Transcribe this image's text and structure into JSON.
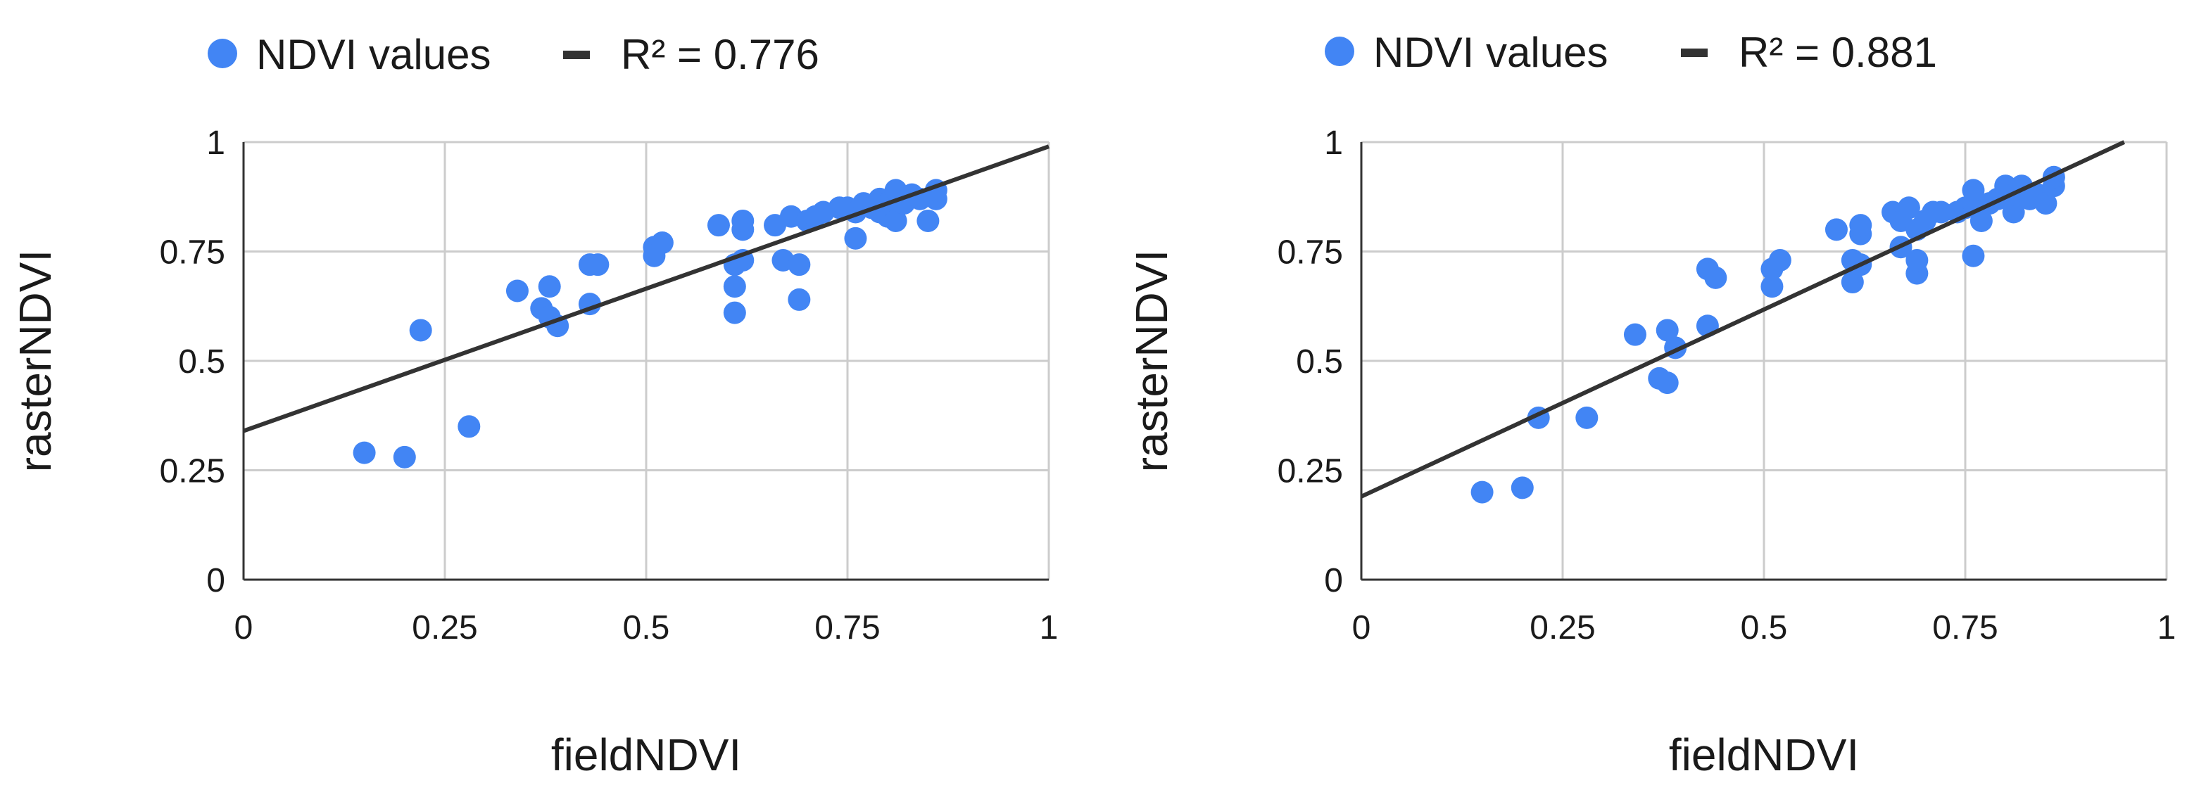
{
  "colors": {
    "points": "#4285f4",
    "trendline": "#333333",
    "grid": "#cccccc",
    "axis": "#333333"
  },
  "chart_data": [
    {
      "type": "scatter",
      "legend": {
        "series_label": "NDVI values",
        "trend_label": "R² = 0.776",
        "placement": "top-left"
      },
      "xlabel": "fieldNDVI",
      "ylabel": "rasterNDVI",
      "xlim": [
        0,
        1
      ],
      "ylim": [
        0,
        1
      ],
      "x_ticks": [
        0,
        0.25,
        0.5,
        0.75,
        1
      ],
      "y_ticks": [
        0,
        0.25,
        0.5,
        0.75,
        1
      ],
      "x_tick_labels": [
        "0",
        "0.25",
        "0.5",
        "0.75",
        "1"
      ],
      "y_tick_labels": [
        "0",
        "0.25",
        "0.5",
        "0.75",
        "1"
      ],
      "grid": true,
      "trendline": {
        "intercept": 0.34,
        "slope": 0.65
      },
      "points": [
        [
          0.15,
          0.29
        ],
        [
          0.2,
          0.28
        ],
        [
          0.22,
          0.57
        ],
        [
          0.28,
          0.35
        ],
        [
          0.34,
          0.66
        ],
        [
          0.37,
          0.62
        ],
        [
          0.38,
          0.67
        ],
        [
          0.38,
          0.6
        ],
        [
          0.39,
          0.58
        ],
        [
          0.43,
          0.63
        ],
        [
          0.43,
          0.72
        ],
        [
          0.44,
          0.72
        ],
        [
          0.51,
          0.74
        ],
        [
          0.51,
          0.76
        ],
        [
          0.52,
          0.77
        ],
        [
          0.59,
          0.81
        ],
        [
          0.61,
          0.61
        ],
        [
          0.61,
          0.67
        ],
        [
          0.61,
          0.72
        ],
        [
          0.62,
          0.73
        ],
        [
          0.62,
          0.8
        ],
        [
          0.62,
          0.82
        ],
        [
          0.66,
          0.81
        ],
        [
          0.67,
          0.73
        ],
        [
          0.68,
          0.83
        ],
        [
          0.69,
          0.64
        ],
        [
          0.69,
          0.72
        ],
        [
          0.7,
          0.82
        ],
        [
          0.71,
          0.83
        ],
        [
          0.72,
          0.84
        ],
        [
          0.74,
          0.85
        ],
        [
          0.75,
          0.85
        ],
        [
          0.76,
          0.78
        ],
        [
          0.76,
          0.84
        ],
        [
          0.77,
          0.86
        ],
        [
          0.78,
          0.85
        ],
        [
          0.79,
          0.84
        ],
        [
          0.79,
          0.87
        ],
        [
          0.8,
          0.83
        ],
        [
          0.8,
          0.86
        ],
        [
          0.81,
          0.82
        ],
        [
          0.81,
          0.89
        ],
        [
          0.82,
          0.86
        ],
        [
          0.83,
          0.88
        ],
        [
          0.84,
          0.87
        ],
        [
          0.85,
          0.82
        ],
        [
          0.86,
          0.87
        ],
        [
          0.86,
          0.89
        ]
      ]
    },
    {
      "type": "scatter",
      "legend": {
        "series_label": "NDVI values",
        "trend_label": "R² = 0.881",
        "placement": "top-left"
      },
      "xlabel": "fieldNDVI",
      "ylabel": "rasterNDVI",
      "xlim": [
        0,
        1
      ],
      "ylim": [
        0,
        1
      ],
      "x_ticks": [
        0,
        0.25,
        0.5,
        0.75,
        1
      ],
      "y_ticks": [
        0,
        0.25,
        0.5,
        0.75,
        1
      ],
      "x_tick_labels": [
        "0",
        "0.25",
        "0.5",
        "0.75",
        "1"
      ],
      "y_tick_labels": [
        "0",
        "0.25",
        "0.5",
        "0.75",
        "1"
      ],
      "grid": true,
      "trendline": {
        "intercept": 0.19,
        "slope": 0.855
      },
      "points": [
        [
          0.15,
          0.2
        ],
        [
          0.2,
          0.21
        ],
        [
          0.22,
          0.37
        ],
        [
          0.28,
          0.37
        ],
        [
          0.34,
          0.56
        ],
        [
          0.37,
          0.46
        ],
        [
          0.38,
          0.45
        ],
        [
          0.38,
          0.57
        ],
        [
          0.39,
          0.53
        ],
        [
          0.43,
          0.58
        ],
        [
          0.43,
          0.71
        ],
        [
          0.44,
          0.69
        ],
        [
          0.51,
          0.67
        ],
        [
          0.51,
          0.71
        ],
        [
          0.52,
          0.73
        ],
        [
          0.59,
          0.8
        ],
        [
          0.61,
          0.68
        ],
        [
          0.61,
          0.73
        ],
        [
          0.62,
          0.72
        ],
        [
          0.62,
          0.79
        ],
        [
          0.62,
          0.81
        ],
        [
          0.66,
          0.84
        ],
        [
          0.67,
          0.76
        ],
        [
          0.67,
          0.82
        ],
        [
          0.68,
          0.85
        ],
        [
          0.69,
          0.7
        ],
        [
          0.69,
          0.73
        ],
        [
          0.69,
          0.8
        ],
        [
          0.7,
          0.82
        ],
        [
          0.71,
          0.84
        ],
        [
          0.72,
          0.84
        ],
        [
          0.74,
          0.84
        ],
        [
          0.75,
          0.85
        ],
        [
          0.76,
          0.74
        ],
        [
          0.76,
          0.86
        ],
        [
          0.76,
          0.89
        ],
        [
          0.77,
          0.82
        ],
        [
          0.78,
          0.86
        ],
        [
          0.79,
          0.87
        ],
        [
          0.8,
          0.9
        ],
        [
          0.81,
          0.84
        ],
        [
          0.81,
          0.88
        ],
        [
          0.82,
          0.9
        ],
        [
          0.83,
          0.87
        ],
        [
          0.84,
          0.88
        ],
        [
          0.85,
          0.86
        ],
        [
          0.86,
          0.9
        ],
        [
          0.86,
          0.92
        ]
      ]
    }
  ]
}
